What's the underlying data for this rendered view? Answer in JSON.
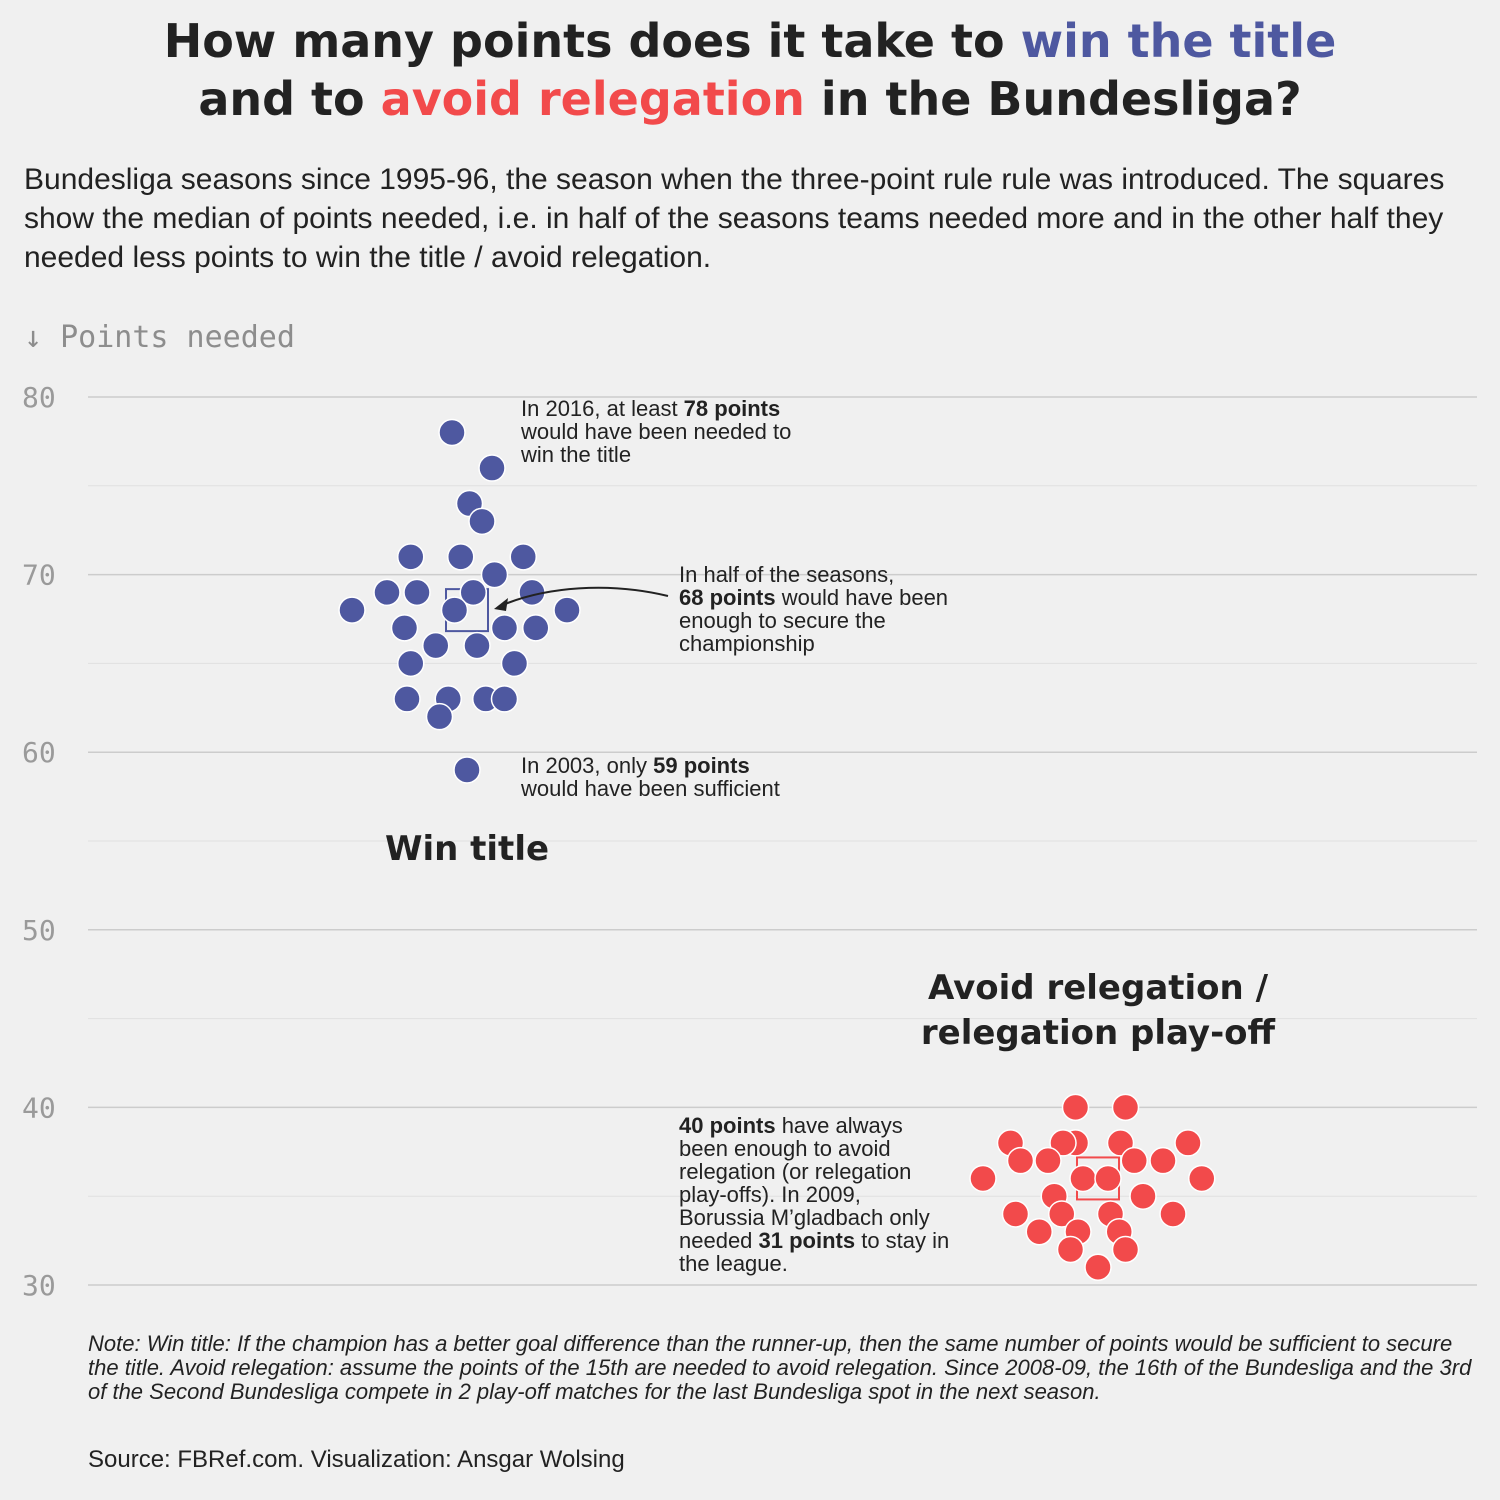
{
  "title": {
    "line1_pre": "How many points does it take to ",
    "line1_hl": "win the title",
    "line2_pre": "and to ",
    "line2_hl": "avoid relegation",
    "line2_post": " in the Bundesliga?"
  },
  "subtitle": "Bundesliga seasons since 1995-96, the season when the three-point rule rule was introduced. The squares show the median of points needed, i.e. in half of the seasons teams needed more and in the other half they needed less points to win the title / avoid relegation.",
  "y_axis_label": "↓ Points needed",
  "colors": {
    "title_group": "#4e58a0",
    "relegation_group": "#f24a4b"
  },
  "chart_data": {
    "type": "scatter",
    "ylim": [
      30,
      80
    ],
    "y_ticks": [
      "80",
      "70",
      "60",
      "50",
      "40",
      "30"
    ],
    "y_tick_values": [
      80,
      70,
      60,
      50,
      40,
      30
    ],
    "series": [
      {
        "label": "Win title",
        "color": "#4e58a0",
        "median": 68,
        "values": [
          78,
          76,
          74,
          73,
          71,
          71,
          71,
          70,
          69,
          69,
          69,
          69,
          68,
          68,
          68,
          67,
          67,
          67,
          66,
          66,
          65,
          65,
          63,
          63,
          63,
          63,
          62,
          59
        ],
        "jitter": [
          -0.12,
          0.2,
          0.02,
          0.12,
          -0.45,
          -0.05,
          0.45,
          0.22,
          -0.64,
          -0.4,
          0.05,
          0.52,
          -0.92,
          -0.1,
          0.8,
          -0.5,
          0.3,
          0.55,
          -0.25,
          0.08,
          -0.45,
          0.38,
          -0.48,
          -0.15,
          0.15,
          0.3,
          -0.22,
          0.0
        ]
      },
      {
        "label_line1": "Avoid relegation /",
        "label_line2": "relegation play-off",
        "color": "#f24a4b",
        "median": 36,
        "values": [
          40,
          40,
          38,
          38,
          38,
          38,
          38,
          37,
          37,
          37,
          37,
          36,
          36,
          36,
          36,
          35,
          35,
          34,
          34,
          34,
          34,
          33,
          33,
          33,
          32,
          32,
          31
        ],
        "jitter": [
          -0.18,
          0.22,
          -0.7,
          -0.18,
          -0.28,
          0.18,
          0.72,
          -0.62,
          -0.4,
          0.29,
          0.52,
          -0.92,
          -0.12,
          0.08,
          0.83,
          -0.35,
          0.36,
          -0.66,
          -0.29,
          0.1,
          0.6,
          -0.47,
          -0.16,
          0.17,
          -0.22,
          0.22,
          0.0
        ]
      }
    ],
    "annotations": {
      "max_title": {
        "line1_pre": "In 2016, at least ",
        "line1_bold": "78 points",
        "line2": "would have been needed to",
        "line3": "win the title"
      },
      "median_title": {
        "line1": "In half of the seasons,",
        "line2_bold": "68 points",
        "line2_post": " would have been",
        "line3": "enough to secure the",
        "line4": "championship"
      },
      "min_title": {
        "line1_pre": "In 2003, only ",
        "line1_bold": "59 points",
        "line2": "would have been sufficient"
      },
      "relegation": {
        "line1_bold": "40 points",
        "line1_post": " have always",
        "line2": "been enough to avoid",
        "line3": "relegation (or relegation",
        "line4": "play-offs). In 2009,",
        "line5": "Borussia M’gladbach only",
        "line6_pre": "needed ",
        "line6_bold": "31 points",
        "line6_post": " to stay in",
        "line7": "the league."
      }
    }
  },
  "note": "Note: Win title: If the champion has a better goal difference than the runner-up, then the same number of points would be sufficient to secure the title. Avoid relegation: assume the points of the 15th are needed to avoid relegation. Since 2008-09, the 16th of the Bundesliga and the 3rd of the Second Bundesliga compete in 2 play-off matches for the last Bundesliga spot in the next season.",
  "source": "Source: FBRef.com. Visualization: Ansgar Wolsing"
}
